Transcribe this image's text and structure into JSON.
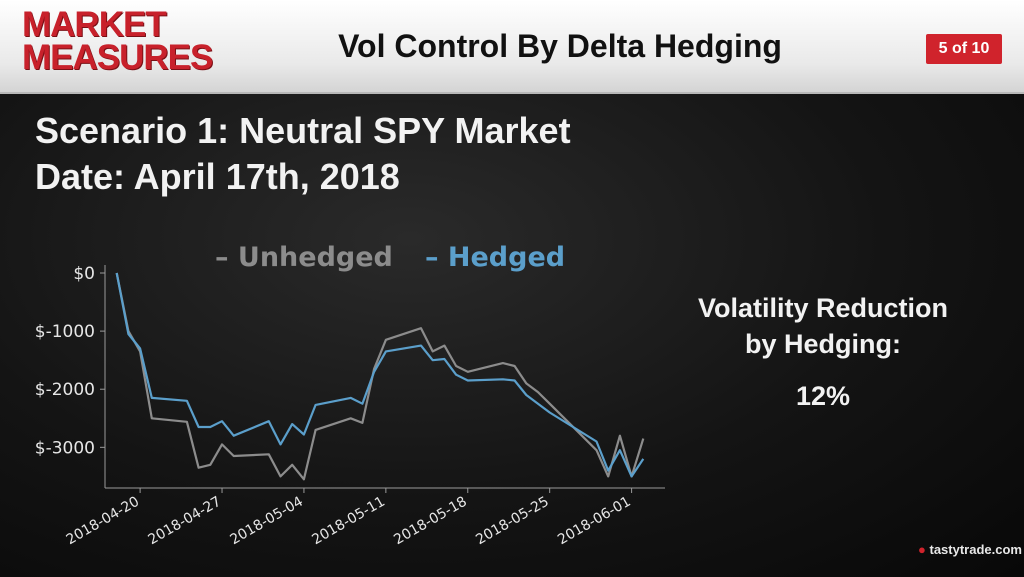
{
  "header": {
    "brand_line1": "MARKET",
    "brand_line2": "MEASURES",
    "title": "Vol Control By Delta Hedging",
    "page_indicator": "5 of 10"
  },
  "main": {
    "scenario": "Scenario 1: Neutral SPY Market",
    "date": "Date: April 17th, 2018",
    "reduction_line1": "Volatility Reduction",
    "reduction_line2": "by Hedging:",
    "reduction_value": "12%"
  },
  "footer": {
    "logo_text": "tastytrade",
    "logo_suffix": ".com"
  },
  "colors": {
    "unhedged": "#8c8c8c",
    "hedged": "#5b9fcb",
    "brand_red": "#c8212b"
  },
  "chart_data": {
    "type": "line",
    "ylim": [
      -3700,
      0
    ],
    "yticks": [
      0,
      -1000,
      -2000,
      -3000
    ],
    "ytick_labels": [
      "$0",
      "$-1000",
      "$-2000",
      "$-3000"
    ],
    "xlim": [
      "2018-04-17",
      "2018-06-03"
    ],
    "xtick_labels": [
      "2018-04-20",
      "2018-04-27",
      "2018-05-04",
      "2018-05-11",
      "2018-05-18",
      "2018-05-25",
      "2018-06-01"
    ],
    "legend_position": "top",
    "series": [
      {
        "name": "Unhedged",
        "x": [
          "2018-04-18",
          "2018-04-19",
          "2018-04-20",
          "2018-04-21",
          "2018-04-24",
          "2018-04-25",
          "2018-04-26",
          "2018-04-27",
          "2018-04-28",
          "2018-05-01",
          "2018-05-02",
          "2018-05-03",
          "2018-05-04",
          "2018-05-05",
          "2018-05-08",
          "2018-05-09",
          "2018-05-10",
          "2018-05-11",
          "2018-05-14",
          "2018-05-15",
          "2018-05-16",
          "2018-05-17",
          "2018-05-18",
          "2018-05-21",
          "2018-05-22",
          "2018-05-23",
          "2018-05-24",
          "2018-05-25",
          "2018-05-29",
          "2018-05-30",
          "2018-05-31",
          "2018-06-01",
          "2018-06-02"
        ],
        "values": [
          0,
          -1000,
          -1350,
          -2500,
          -2560,
          -3350,
          -3300,
          -2950,
          -3150,
          -3120,
          -3500,
          -3300,
          -3550,
          -2700,
          -2500,
          -2580,
          -1650,
          -1150,
          -950,
          -1350,
          -1250,
          -1600,
          -1700,
          -1550,
          -1600,
          -1900,
          -2050,
          -2250,
          -3050,
          -3500,
          -2800,
          -3500,
          -2850
        ]
      },
      {
        "name": "Hedged",
        "x": [
          "2018-04-18",
          "2018-04-19",
          "2018-04-20",
          "2018-04-21",
          "2018-04-24",
          "2018-04-25",
          "2018-04-26",
          "2018-04-27",
          "2018-04-28",
          "2018-05-01",
          "2018-05-02",
          "2018-05-03",
          "2018-05-04",
          "2018-05-05",
          "2018-05-08",
          "2018-05-09",
          "2018-05-10",
          "2018-05-11",
          "2018-05-14",
          "2018-05-15",
          "2018-05-16",
          "2018-05-17",
          "2018-05-18",
          "2018-05-21",
          "2018-05-22",
          "2018-05-23",
          "2018-05-24",
          "2018-05-25",
          "2018-05-29",
          "2018-05-30",
          "2018-05-31",
          "2018-06-01",
          "2018-06-02"
        ],
        "values": [
          0,
          -1050,
          -1300,
          -2150,
          -2200,
          -2650,
          -2650,
          -2550,
          -2800,
          -2550,
          -2950,
          -2600,
          -2780,
          -2270,
          -2150,
          -2250,
          -1700,
          -1350,
          -1250,
          -1500,
          -1480,
          -1750,
          -1850,
          -1830,
          -1850,
          -2100,
          -2250,
          -2400,
          -2900,
          -3400,
          -3050,
          -3500,
          -3200
        ]
      }
    ]
  }
}
